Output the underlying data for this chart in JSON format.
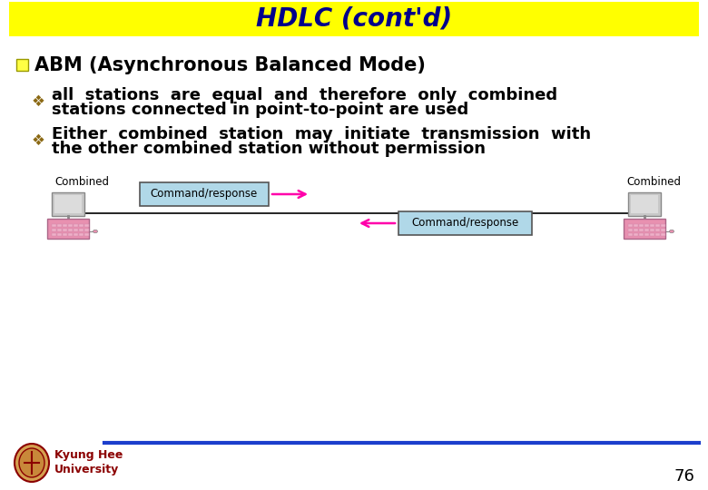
{
  "title": "HDLC (cont'd)",
  "title_bg": "#FFFF00",
  "title_color": "#00008B",
  "title_fontsize": 20,
  "bullet1_text": "ABM (Asynchronous Balanced Mode)",
  "bullet1_fontsize": 15,
  "bullet_color": "#8B6914",
  "bullet2a_line1": "all  stations  are  equal  and  therefore  only  combined",
  "bullet2a_line2": "stations connected in point-to-point are used",
  "bullet2b_line1": "Either  combined  station  may  initiate  transmission  with",
  "bullet2b_line2": "the other combined station without permission",
  "bullet_fontsize": 13,
  "text_color": "#000000",
  "bg_color": "#FFFFFF",
  "footer_text_1": "Kyung Hee",
  "footer_text_2": "University",
  "footer_color": "#8B0000",
  "footer_line_color": "#1C3ECC",
  "page_number": "76",
  "combined_label": "Combined",
  "cmd_resp_text": "Command/response",
  "cmd_box_color": "#B0D8E8",
  "cmd_box_edge": "#555555",
  "arrow_color": "#FF00AA",
  "line_color": "#000000"
}
